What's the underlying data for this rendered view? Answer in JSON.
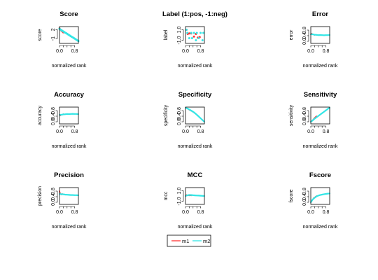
{
  "legend": {
    "entries": [
      {
        "name": "m1",
        "color": "#ff3333"
      },
      {
        "name": "m2",
        "color": "#33e6e6"
      }
    ],
    "placement": "bottom-center"
  },
  "chart_data": [
    {
      "type": "scatter",
      "title": "Score",
      "xlabel": "normalized rank",
      "ylabel": "score",
      "xlim": [
        0,
        1
      ],
      "ylim": [
        -2.6,
        3.0
      ],
      "xticks": [
        {
          "v": 0.0,
          "label": "0.0"
        },
        {
          "v": 0.8,
          "label": "0.8"
        }
      ],
      "yticks": [
        {
          "v": 2,
          "label": "2"
        },
        {
          "v": -1,
          "label": "-1"
        }
      ],
      "series": [
        {
          "name": "m1",
          "x": [
            0.0,
            0.05,
            0.1,
            0.15,
            0.2
          ],
          "y": [
            2.4,
            2.0,
            1.7,
            1.4,
            1.1
          ]
        },
        {
          "name": "m2",
          "x": [
            0.0,
            0.05,
            0.1,
            0.15,
            0.2,
            0.25,
            0.3,
            0.35,
            0.4,
            0.45,
            0.5,
            0.55,
            0.6,
            0.65,
            0.7,
            0.75,
            0.8,
            0.85,
            0.9,
            0.95,
            1.0
          ],
          "y": [
            2.3,
            2.0,
            1.8,
            1.6,
            1.4,
            1.2,
            1.0,
            0.8,
            0.6,
            0.4,
            0.2,
            0.0,
            -0.2,
            -0.4,
            -0.6,
            -0.8,
            -1.0,
            -1.2,
            -1.4,
            -1.6,
            -1.8
          ]
        }
      ]
    },
    {
      "type": "scatter",
      "title": "Label (1:pos, -1:neg)",
      "xlabel": "normalized rank",
      "ylabel": "label",
      "xlim": [
        0,
        1
      ],
      "ylim": [
        -1.6,
        1.6
      ],
      "xticks": [
        {
          "v": 0.0,
          "label": "0.0"
        },
        {
          "v": 0.8,
          "label": "0.8"
        }
      ],
      "yticks": [
        {
          "v": 1.0,
          "label": "1.0"
        },
        {
          "v": -1.0,
          "label": "-1.0"
        }
      ],
      "series": [
        {
          "name": "m1",
          "x": [
            0.05,
            0.12,
            0.2,
            0.3,
            0.45,
            0.55,
            0.65,
            0.75
          ],
          "y": [
            1.0,
            0.2,
            0.3,
            0.3,
            -0.3,
            0.2,
            -0.5,
            -0.4
          ]
        },
        {
          "name": "m2",
          "x": [
            0.05,
            0.1,
            0.2,
            0.3,
            0.35,
            0.45,
            0.55,
            0.6,
            0.7,
            0.8,
            0.9,
            0.95
          ],
          "y": [
            1.0,
            0.4,
            -0.6,
            0.4,
            -0.6,
            0.4,
            -1.0,
            0.4,
            -0.6,
            0.4,
            -1.0,
            0.4
          ]
        }
      ]
    },
    {
      "type": "line",
      "title": "Error",
      "xlabel": "normalized rank",
      "ylabel": "error",
      "xlim": [
        0,
        1
      ],
      "ylim": [
        -0.15,
        1.05
      ],
      "xticks": [
        {
          "v": 0.0,
          "label": "0.0"
        },
        {
          "v": 0.8,
          "label": "0.8"
        }
      ],
      "yticks": [
        {
          "v": 0.8,
          "label": "0.8"
        },
        {
          "v": 0.4,
          "label": "0.4"
        },
        {
          "v": 0.0,
          "label": "0.0"
        }
      ],
      "series": [
        {
          "name": "m1",
          "x": [
            0.0,
            0.05,
            0.1,
            0.15,
            0.2,
            0.25,
            0.3
          ],
          "y": [
            0.5,
            0.55,
            0.5,
            0.48,
            0.45,
            0.47,
            0.46
          ]
        },
        {
          "name": "m2",
          "x": [
            0.0,
            0.1,
            0.2,
            0.3,
            0.4,
            0.5,
            0.6,
            0.7,
            0.8,
            0.9,
            1.0
          ],
          "y": [
            0.5,
            0.5,
            0.47,
            0.46,
            0.44,
            0.45,
            0.44,
            0.43,
            0.44,
            0.44,
            0.45
          ]
        }
      ]
    },
    {
      "type": "line",
      "title": "Accuracy",
      "xlabel": "normalized rank",
      "ylabel": "accuracy",
      "xlim": [
        0,
        1
      ],
      "ylim": [
        -0.15,
        1.05
      ],
      "xticks": [
        {
          "v": 0.0,
          "label": "0.0"
        },
        {
          "v": 0.8,
          "label": "0.8"
        }
      ],
      "yticks": [
        {
          "v": 0.8,
          "label": "0.8"
        },
        {
          "v": 0.4,
          "label": "0.4"
        },
        {
          "v": 0.0,
          "label": "0.0"
        }
      ],
      "series": [
        {
          "name": "m1",
          "x": [
            0.0,
            0.05,
            0.1,
            0.15,
            0.2,
            0.25,
            0.3
          ],
          "y": [
            0.5,
            0.45,
            0.5,
            0.52,
            0.55,
            0.53,
            0.54
          ]
        },
        {
          "name": "m2",
          "x": [
            0.0,
            0.1,
            0.2,
            0.3,
            0.4,
            0.5,
            0.6,
            0.7,
            0.8,
            0.9,
            1.0
          ],
          "y": [
            0.5,
            0.5,
            0.53,
            0.54,
            0.56,
            0.55,
            0.56,
            0.57,
            0.56,
            0.56,
            0.55
          ]
        }
      ]
    },
    {
      "type": "line",
      "title": "Specificity",
      "xlabel": "normalized rank",
      "ylabel": "specificity",
      "xlim": [
        0,
        1
      ],
      "ylim": [
        -0.15,
        1.05
      ],
      "xticks": [
        {
          "v": 0.0,
          "label": "0.0"
        },
        {
          "v": 0.8,
          "label": "0.8"
        }
      ],
      "yticks": [
        {
          "v": 0.8,
          "label": "0.8"
        },
        {
          "v": 0.4,
          "label": "0.4"
        },
        {
          "v": 0.0,
          "label": "0.0"
        }
      ],
      "series": [
        {
          "name": "m1",
          "x": [
            0.0,
            0.1,
            0.2,
            0.3,
            0.4,
            0.5,
            0.6,
            0.65
          ],
          "y": [
            1.0,
            0.95,
            0.85,
            0.78,
            0.7,
            0.6,
            0.5,
            0.45
          ]
        },
        {
          "name": "m2",
          "x": [
            0.0,
            0.1,
            0.2,
            0.3,
            0.4,
            0.5,
            0.6,
            0.7,
            0.8,
            0.9,
            1.0
          ],
          "y": [
            1.0,
            0.95,
            0.88,
            0.8,
            0.72,
            0.62,
            0.5,
            0.38,
            0.25,
            0.12,
            0.0
          ]
        }
      ]
    },
    {
      "type": "line",
      "title": "Sensitivity",
      "xlabel": "normalized rank",
      "ylabel": "sensitivity",
      "xlim": [
        0,
        1
      ],
      "ylim": [
        -0.15,
        1.05
      ],
      "xticks": [
        {
          "v": 0.0,
          "label": "0.0"
        },
        {
          "v": 0.8,
          "label": "0.8"
        }
      ],
      "yticks": [
        {
          "v": 0.8,
          "label": "0.8"
        },
        {
          "v": 0.4,
          "label": "0.4"
        },
        {
          "v": 0.0,
          "label": "0.0"
        }
      ],
      "series": [
        {
          "name": "m1",
          "x": [
            0.0,
            0.05,
            0.1,
            0.15,
            0.2,
            0.25,
            0.3
          ],
          "y": [
            0.0,
            0.05,
            0.12,
            0.2,
            0.28,
            0.34,
            0.4
          ]
        },
        {
          "name": "m2",
          "x": [
            0.0,
            0.1,
            0.2,
            0.3,
            0.4,
            0.5,
            0.6,
            0.7,
            0.8,
            0.9,
            1.0
          ],
          "y": [
            0.0,
            0.1,
            0.22,
            0.32,
            0.42,
            0.52,
            0.62,
            0.72,
            0.82,
            0.92,
            1.0
          ]
        }
      ]
    },
    {
      "type": "line",
      "title": "Precision",
      "xlabel": "normalized rank",
      "ylabel": "precision",
      "xlim": [
        0,
        1
      ],
      "ylim": [
        -0.15,
        1.05
      ],
      "xticks": [
        {
          "v": 0.0,
          "label": "0.0"
        },
        {
          "v": 0.8,
          "label": "0.8"
        }
      ],
      "yticks": [
        {
          "v": 0.8,
          "label": "0.8"
        },
        {
          "v": 0.4,
          "label": "0.4"
        },
        {
          "v": 0.0,
          "label": "0.0"
        }
      ],
      "series": [
        {
          "name": "m1",
          "x": [
            0.0,
            0.05,
            0.1,
            0.15,
            0.2,
            0.25,
            0.3
          ],
          "y": [
            0.8,
            0.6,
            0.55,
            0.6,
            0.58,
            0.55,
            0.54
          ]
        },
        {
          "name": "m2",
          "x": [
            0.0,
            0.1,
            0.2,
            0.3,
            0.4,
            0.5,
            0.6,
            0.7,
            0.8,
            0.9,
            1.0
          ],
          "y": [
            0.6,
            0.58,
            0.57,
            0.55,
            0.54,
            0.53,
            0.52,
            0.52,
            0.51,
            0.51,
            0.5
          ]
        }
      ]
    },
    {
      "type": "line",
      "title": "MCC",
      "xlabel": "normalized rank",
      "ylabel": "mcc",
      "xlim": [
        0,
        1
      ],
      "ylim": [
        -1.6,
        1.6
      ],
      "xticks": [
        {
          "v": 0.0,
          "label": "0.0"
        },
        {
          "v": 0.8,
          "label": "0.8"
        }
      ],
      "yticks": [
        {
          "v": 1.0,
          "label": "1.0"
        },
        {
          "v": -1.0,
          "label": "-1.0"
        }
      ],
      "series": [
        {
          "name": "m1",
          "x": [
            0.0,
            0.05,
            0.1,
            0.15,
            0.2,
            0.25,
            0.3
          ],
          "y": [
            0.0,
            0.2,
            0.1,
            0.15,
            0.1,
            0.12,
            0.1
          ]
        },
        {
          "name": "m2",
          "x": [
            0.0,
            0.1,
            0.2,
            0.3,
            0.4,
            0.5,
            0.6,
            0.7,
            0.8,
            0.9,
            1.0
          ],
          "y": [
            0.0,
            0.15,
            0.2,
            0.18,
            0.15,
            0.12,
            0.1,
            0.08,
            0.06,
            0.03,
            0.0
          ]
        }
      ]
    },
    {
      "type": "line",
      "title": "Fscore",
      "xlabel": "normalized rank",
      "ylabel": "fscore",
      "xlim": [
        0,
        1
      ],
      "ylim": [
        -0.15,
        1.05
      ],
      "xticks": [
        {
          "v": 0.0,
          "label": "0.0"
        },
        {
          "v": 0.8,
          "label": "0.8"
        }
      ],
      "yticks": [
        {
          "v": 0.8,
          "label": "0.8"
        },
        {
          "v": 0.4,
          "label": "0.4"
        },
        {
          "v": 0.0,
          "label": "0.0"
        }
      ],
      "series": [
        {
          "name": "m1",
          "x": [
            0.0,
            0.05,
            0.1,
            0.15,
            0.2,
            0.25,
            0.3
          ],
          "y": [
            0.0,
            0.12,
            0.2,
            0.3,
            0.35,
            0.4,
            0.45
          ]
        },
        {
          "name": "m2",
          "x": [
            0.0,
            0.1,
            0.2,
            0.3,
            0.4,
            0.5,
            0.6,
            0.7,
            0.8,
            0.9,
            1.0
          ],
          "y": [
            0.0,
            0.2,
            0.32,
            0.42,
            0.48,
            0.52,
            0.55,
            0.58,
            0.6,
            0.62,
            0.63
          ]
        }
      ]
    }
  ]
}
